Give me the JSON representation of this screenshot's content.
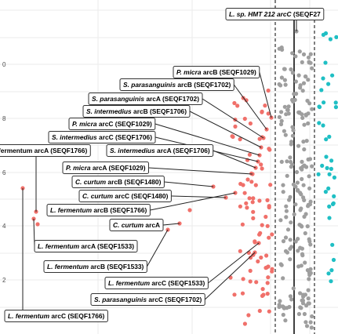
{
  "chart_data": {
    "type": "scatter",
    "y_ticks": [
      "0",
      "8",
      "6",
      "4",
      "2"
    ],
    "colors": {
      "red": "#F0706A",
      "gray": "#9E9E9E",
      "teal": "#1FBFC4"
    },
    "labels": [
      {
        "id": "lhmt212-arcc",
        "text": "L. sp. HMT 212 arcC (SEQF27"
      },
      {
        "id": "pmicra-arcb",
        "text": "P. micra arcB (SEQF1029)"
      },
      {
        "id": "sparas-arcb",
        "text": "S. parasanguinis arcB (SEQF1702)"
      },
      {
        "id": "sparas-arca",
        "text": "S. parasanguinis arcA (SEQF1702)"
      },
      {
        "id": "sinter-arcb",
        "text": "S. intermedius arcB (SEQF1706)"
      },
      {
        "id": "pmicra-arcc",
        "text": "P. micra arcC (SEQF1029)"
      },
      {
        "id": "sinter-arcc",
        "text": "S. intermedius arcC (SEQF1706)"
      },
      {
        "id": "lferm-arca-top",
        "text": "fermentum arcA (SEQF1766)"
      },
      {
        "id": "sinter-arca",
        "text": "S. intermedius arcA (SEQF1706)"
      },
      {
        "id": "pmicra-arca",
        "text": "P. micra arcA (SEQF1029)"
      },
      {
        "id": "ccurt-arcb",
        "text": "C. curtum arcB (SEQF1480)"
      },
      {
        "id": "ccurt-arcc",
        "text": "C. curtum arcC (SEQF1480)"
      },
      {
        "id": "lferm-arcb-1766",
        "text": "L. fermentum arcB (SEQF1766)"
      },
      {
        "id": "ccurt-arca",
        "text": "C. curtum arcA"
      },
      {
        "id": "lferm-arca-1533",
        "text": "L. fermentum arcA (SEQF1533)"
      },
      {
        "id": "lferm-arcb-1533",
        "text": "L. fermentum arcB (SEQF1533)"
      },
      {
        "id": "lferm-arcc-1533",
        "text": "L. fermentum arcC (SEQF1533)"
      },
      {
        "id": "sparas-arcc",
        "text": "S. parasanguinis arcC (SEQF1702)"
      },
      {
        "id": "lferm-arcc-1766",
        "text": "L. fermentum arcC (SEQF1766)"
      }
    ]
  }
}
